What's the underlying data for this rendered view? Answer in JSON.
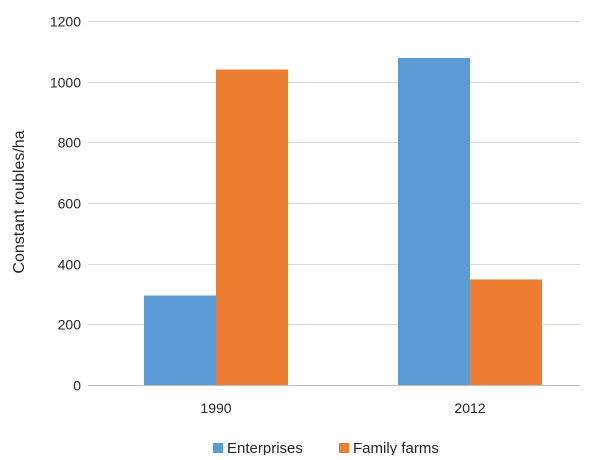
{
  "chart_data": {
    "type": "bar",
    "title": "",
    "xlabel": "",
    "ylabel": "Constant roubles/ha",
    "categories": [
      "1990",
      "2012"
    ],
    "series": [
      {
        "name": "Enterprises",
        "values": [
          295,
          1078
        ],
        "color": "#5b9bd5"
      },
      {
        "name": "Family farms",
        "values": [
          1040,
          348
        ],
        "color": "#ed7d31"
      }
    ],
    "ylim": [
      0,
      1200
    ],
    "yticks": [
      "0",
      "200",
      "400",
      "600",
      "800",
      "1000",
      "1200"
    ],
    "grid": true,
    "legend_position": "bottom"
  }
}
